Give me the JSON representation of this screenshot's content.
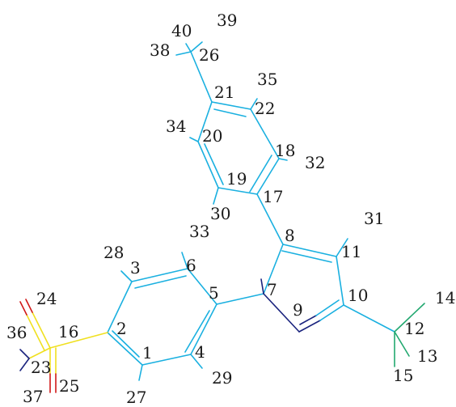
{
  "colors": {
    "carbon_bond": "#1ab0e0",
    "chiral_center": "#1a237e",
    "methyl_group": "#22a870",
    "sulfur": "#f0e020",
    "oxygen": "#d01818",
    "background": "#ffffff",
    "label": "#1a1a1a"
  },
  "atom_labels": [
    {
      "id": "label-1",
      "text": "1"
    },
    {
      "id": "label-2",
      "text": "2"
    },
    {
      "id": "label-3",
      "text": "3"
    },
    {
      "id": "label-4",
      "text": "4"
    },
    {
      "id": "label-5",
      "text": "5"
    },
    {
      "id": "label-6",
      "text": "6"
    },
    {
      "id": "label-7",
      "text": "7"
    },
    {
      "id": "label-8",
      "text": "8"
    },
    {
      "id": "label-9",
      "text": "9"
    },
    {
      "id": "label-10",
      "text": "10"
    },
    {
      "id": "label-11",
      "text": "11"
    },
    {
      "id": "label-12",
      "text": "12"
    },
    {
      "id": "label-13",
      "text": "13"
    },
    {
      "id": "label-14",
      "text": "14"
    },
    {
      "id": "label-15",
      "text": "15"
    },
    {
      "id": "label-16",
      "text": "16"
    },
    {
      "id": "label-17",
      "text": "17"
    },
    {
      "id": "label-18",
      "text": "18"
    },
    {
      "id": "label-19",
      "text": "19"
    },
    {
      "id": "label-20",
      "text": "20"
    },
    {
      "id": "label-21",
      "text": "21"
    },
    {
      "id": "label-22",
      "text": "22"
    },
    {
      "id": "label-23",
      "text": "23"
    },
    {
      "id": "label-24",
      "text": "24"
    },
    {
      "id": "label-25",
      "text": "25"
    },
    {
      "id": "label-26",
      "text": "26"
    },
    {
      "id": "label-27",
      "text": "27"
    },
    {
      "id": "label-28",
      "text": "28"
    },
    {
      "id": "label-29",
      "text": "29"
    },
    {
      "id": "label-30",
      "text": "30"
    },
    {
      "id": "label-31",
      "text": "31"
    },
    {
      "id": "label-32",
      "text": "32"
    },
    {
      "id": "label-33",
      "text": "33"
    },
    {
      "id": "label-34",
      "text": "34"
    },
    {
      "id": "label-35",
      "text": "35"
    },
    {
      "id": "label-36",
      "text": "36"
    },
    {
      "id": "label-37",
      "text": "37"
    },
    {
      "id": "label-38",
      "text": "38"
    },
    {
      "id": "label-39",
      "text": "39"
    },
    {
      "id": "label-40",
      "text": "40"
    }
  ]
}
